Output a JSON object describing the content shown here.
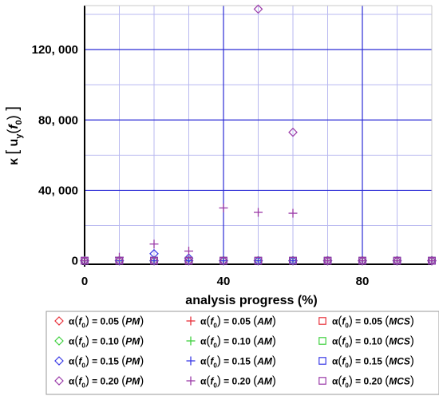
{
  "chart_data": {
    "type": "scatter",
    "xlabel": "analysis progress (%)",
    "ylabel_html": [
      "κ",
      "[",
      "u",
      "y",
      "(",
      "f",
      "0",
      ")",
      "]"
    ],
    "xlim": [
      0,
      100
    ],
    "ylim": [
      -2000,
      145000
    ],
    "x_ticks": [
      0,
      40,
      80
    ],
    "x_tick_labels": [
      "0",
      "40",
      "80"
    ],
    "y_ticks": [
      0,
      40000,
      80000,
      120000
    ],
    "y_tick_labels": [
      "0",
      "40, 000",
      "80, 000",
      "120, 000"
    ],
    "grid": true,
    "colors": {
      "red": "#e8303a",
      "green": "#3fd13f",
      "blue": "#3a3ae6",
      "purple": "#9a3aa8",
      "major_grid": "#2b2bd6",
      "minor_grid": "#b9b9f0"
    },
    "series": [
      {
        "name": "α(f0) = 0.05 (PM)",
        "alpha": "0.05",
        "method": "PM",
        "marker": "diamond",
        "color": "red",
        "x": [
          0,
          10,
          20,
          30,
          40,
          50,
          60,
          70,
          80,
          90,
          100
        ],
        "y": [
          0,
          0,
          0,
          0,
          0,
          0,
          0,
          0,
          0,
          0,
          0
        ]
      },
      {
        "name": "α(f0) = 0.10 (PM)",
        "alpha": "0.10",
        "method": "PM",
        "marker": "diamond",
        "color": "green",
        "x": [
          0,
          10,
          20,
          30,
          40,
          50,
          60,
          70,
          80,
          90,
          100
        ],
        "y": [
          0,
          0,
          0,
          0,
          0,
          0,
          0,
          0,
          0,
          0,
          0
        ]
      },
      {
        "name": "α(f0) = 0.15 (PM)",
        "alpha": "0.15",
        "method": "PM",
        "marker": "diamond",
        "color": "blue",
        "x": [
          0,
          10,
          20,
          30,
          40,
          50,
          60,
          70,
          80,
          90,
          100
        ],
        "y": [
          0,
          0,
          4000,
          1500,
          0,
          0,
          0,
          0,
          0,
          0,
          0
        ]
      },
      {
        "name": "α(f0) = 0.20 (PM)",
        "alpha": "0.20",
        "method": "PM",
        "marker": "diamond",
        "color": "purple",
        "x": [
          0,
          10,
          20,
          30,
          40,
          50,
          60,
          70,
          80,
          90,
          100
        ],
        "y": [
          0,
          0,
          0,
          0,
          0,
          143000,
          73000,
          0,
          0,
          0,
          0
        ]
      },
      {
        "name": "α(f0) = 0.05 (AM)",
        "alpha": "0.05",
        "method": "AM",
        "marker": "plus",
        "color": "red",
        "x": [
          0,
          10,
          20,
          30,
          40,
          50,
          60,
          70,
          80,
          90,
          100
        ],
        "y": [
          0,
          0,
          0,
          0,
          0,
          0,
          0,
          0,
          0,
          0,
          0
        ]
      },
      {
        "name": "α(f0) = 0.10 (AM)",
        "alpha": "0.10",
        "method": "AM",
        "marker": "plus",
        "color": "green",
        "x": [
          0,
          10,
          20,
          30,
          40,
          50,
          60,
          70,
          80,
          90,
          100
        ],
        "y": [
          0,
          0,
          0,
          0,
          0,
          0,
          0,
          0,
          0,
          0,
          0
        ]
      },
      {
        "name": "α(f0) = 0.15 (AM)",
        "alpha": "0.15",
        "method": "AM",
        "marker": "plus",
        "color": "blue",
        "x": [
          0,
          10,
          20,
          30,
          40,
          50,
          60,
          70,
          80,
          90,
          100
        ],
        "y": [
          0,
          0,
          0,
          0,
          0,
          0,
          0,
          0,
          0,
          0,
          0
        ]
      },
      {
        "name": "α(f0) = 0.20 (AM)",
        "alpha": "0.20",
        "method": "AM",
        "marker": "plus",
        "color": "purple",
        "x": [
          0,
          10,
          20,
          30,
          40,
          50,
          60,
          70,
          80,
          90,
          100
        ],
        "y": [
          0,
          2000,
          9500,
          5500,
          30000,
          27500,
          27000,
          0,
          0,
          0,
          0
        ]
      },
      {
        "name": "α(f0) = 0.05 (MCS)",
        "alpha": "0.05",
        "method": "MCS",
        "marker": "square",
        "color": "red",
        "x": [
          0,
          10,
          20,
          30,
          40,
          50,
          60,
          70,
          80,
          90,
          100
        ],
        "y": [
          0,
          0,
          0,
          0,
          0,
          0,
          0,
          0,
          0,
          0,
          0
        ]
      },
      {
        "name": "α(f0) = 0.10 (MCS)",
        "alpha": "0.10",
        "method": "MCS",
        "marker": "square",
        "color": "green",
        "x": [
          0,
          10,
          20,
          30,
          40,
          50,
          60,
          70,
          80,
          90,
          100
        ],
        "y": [
          0,
          0,
          0,
          0,
          0,
          0,
          0,
          0,
          0,
          0,
          0
        ]
      },
      {
        "name": "α(f0) = 0.15 (MCS)",
        "alpha": "0.15",
        "method": "MCS",
        "marker": "square",
        "color": "blue",
        "x": [
          0,
          10,
          20,
          30,
          40,
          50,
          60,
          70,
          80,
          90,
          100
        ],
        "y": [
          0,
          0,
          0,
          0,
          0,
          0,
          0,
          0,
          0,
          0,
          0
        ]
      },
      {
        "name": "α(f0) = 0.20 (MCS)",
        "alpha": "0.20",
        "method": "MCS",
        "marker": "square",
        "color": "purple",
        "x": [
          0,
          10,
          20,
          30,
          40,
          50,
          60,
          70,
          80,
          90,
          100
        ],
        "y": [
          0,
          0,
          0,
          0,
          0,
          0,
          0,
          0,
          0,
          0,
          0
        ]
      }
    ],
    "legend": {
      "placement": "bottom",
      "columns": 3,
      "alpha_symbol": "α",
      "f_symbol": "f",
      "subscript": "0"
    }
  }
}
